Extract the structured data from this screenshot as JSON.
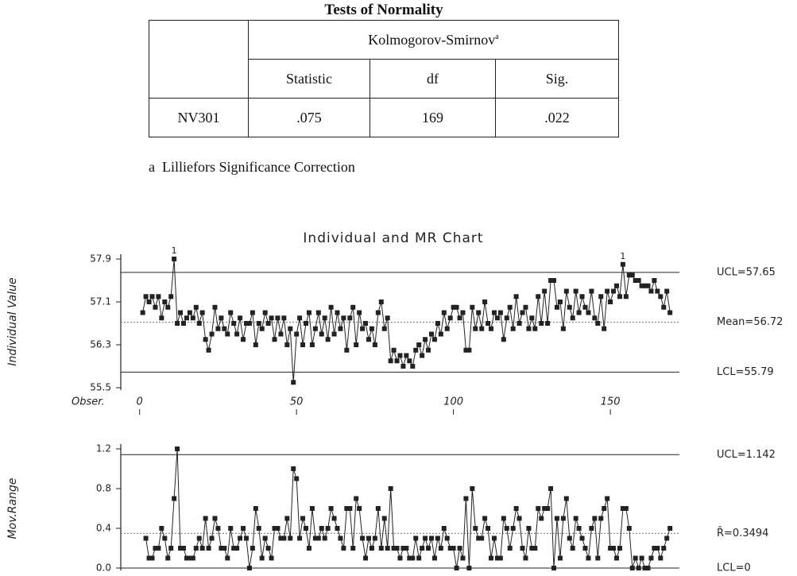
{
  "header": {
    "title": "Tests of Normality"
  },
  "table": {
    "group_header": "Kolmogorov-Smirnov",
    "group_note": "a",
    "columns": [
      "Statistic",
      "df",
      "Sig."
    ],
    "rows": [
      [
        "NV301",
        ".075",
        "169",
        ".022"
      ]
    ]
  },
  "footnote": {
    "mark": "a",
    "text": "Lilliefors Significance Correction"
  },
  "chart_data": [
    {
      "type": "line",
      "title": "Individual and MR Chart",
      "ylabel": "Individual Value",
      "xlabel": "Obser.",
      "color": "#222222",
      "xlim": [
        -6,
        172
      ],
      "xticks": [
        0,
        50,
        100,
        150
      ],
      "ylim": [
        55.5,
        57.9
      ],
      "yticks": [
        55.5,
        56.3,
        57.1,
        57.9
      ],
      "reference_lines": [
        {
          "value": 57.65,
          "label": "UCL=57.65"
        },
        {
          "value": 56.72,
          "label": "Mean=56.72"
        },
        {
          "value": 55.79,
          "label": "LCL=55.79"
        }
      ],
      "flag_label": "1",
      "values": [
        56.9,
        57.2,
        57.1,
        57.2,
        57.0,
        57.2,
        56.8,
        57.1,
        57.0,
        57.2,
        57.9,
        56.7,
        56.9,
        56.7,
        56.8,
        56.9,
        56.8,
        57.0,
        56.7,
        56.9,
        56.4,
        56.2,
        56.5,
        57.0,
        56.6,
        56.8,
        56.6,
        56.5,
        56.9,
        56.7,
        56.5,
        56.8,
        56.4,
        56.7,
        56.7,
        56.9,
        56.3,
        56.7,
        56.6,
        56.9,
        56.7,
        56.8,
        56.4,
        56.8,
        56.5,
        56.8,
        56.3,
        56.6,
        55.6,
        56.5,
        56.8,
        56.3,
        56.7,
        56.9,
        56.3,
        56.6,
        56.9,
        56.5,
        56.8,
        56.4,
        57.0,
        56.5,
        56.9,
        56.6,
        56.8,
        56.2,
        56.8,
        57.0,
        56.3,
        56.9,
        56.6,
        56.7,
        56.4,
        56.6,
        56.3,
        56.9,
        57.1,
        56.6,
        56.8,
        56.0,
        56.2,
        56.0,
        56.1,
        55.9,
        56.1,
        56.0,
        55.9,
        56.2,
        56.3,
        56.1,
        56.4,
        56.2,
        56.5,
        56.4,
        56.7,
        56.5,
        56.9,
        56.6,
        56.8,
        57.0,
        57.0,
        56.8,
        56.9,
        56.2,
        56.2,
        57.0,
        56.6,
        56.9,
        56.6,
        57.1,
        56.7,
        56.6,
        56.9,
        56.8,
        56.9,
        56.4,
        56.8,
        57.0,
        56.6,
        57.2,
        56.7,
        56.9,
        57.0,
        56.6,
        56.8,
        56.6,
        57.2,
        56.7,
        57.3,
        56.7,
        57.5,
        57.5,
        57.0,
        57.1,
        56.6,
        57.3,
        57.0,
        56.8,
        57.3,
        56.9,
        57.2,
        57.0,
        56.9,
        57.3,
        56.8,
        56.7,
        57.2,
        56.6,
        57.3,
        57.1,
        57.3,
        57.4,
        57.2,
        57.8,
        57.2,
        57.6,
        57.6,
        57.5,
        57.5,
        57.4,
        57.4,
        57.4,
        57.3,
        57.5,
        57.3,
        57.2,
        57.0,
        57.3,
        56.9
      ]
    },
    {
      "type": "line",
      "ylabel": "Mov.Range",
      "color": "#222222",
      "xlim": [
        -6,
        172
      ],
      "ylim": [
        0,
        1.2
      ],
      "yticks": [
        {
          "value": 0,
          "label": "0.0"
        },
        0.4,
        0.8,
        1.2
      ],
      "reference_lines": [
        {
          "value": 1.142,
          "label": "UCL=1.142"
        },
        {
          "value": 0.3494,
          "label": "R̄=0.3494"
        },
        {
          "value": 0,
          "label": "LCL=0"
        }
      ],
      "values": [
        null,
        0.3,
        0.1,
        0.1,
        0.2,
        0.2,
        0.4,
        0.3,
        0.1,
        0.2,
        0.7,
        1.2,
        0.2,
        0.2,
        0.1,
        0.1,
        0.1,
        0.2,
        0.3,
        0.2,
        0.5,
        0.2,
        0.3,
        0.5,
        0.4,
        0.2,
        0.2,
        0.1,
        0.4,
        0.2,
        0.2,
        0.3,
        0.4,
        0.3,
        0.0,
        0.2,
        0.6,
        0.4,
        0.1,
        0.3,
        0.2,
        0.1,
        0.4,
        0.4,
        0.3,
        0.3,
        0.5,
        0.3,
        1.0,
        0.9,
        0.3,
        0.5,
        0.4,
        0.2,
        0.6,
        0.3,
        0.3,
        0.4,
        0.3,
        0.4,
        0.6,
        0.5,
        0.4,
        0.3,
        0.2,
        0.6,
        0.6,
        0.2,
        0.7,
        0.6,
        0.3,
        0.1,
        0.3,
        0.2,
        0.3,
        0.6,
        0.2,
        0.5,
        0.2,
        0.8,
        0.2,
        0.2,
        0.1,
        0.2,
        0.2,
        0.1,
        0.1,
        0.3,
        0.1,
        0.2,
        0.3,
        0.2,
        0.3,
        0.1,
        0.3,
        0.2,
        0.4,
        0.3,
        0.2,
        0.2,
        0.0,
        0.2,
        0.1,
        0.7,
        0.0,
        0.8,
        0.4,
        0.3,
        0.3,
        0.5,
        0.4,
        0.1,
        0.3,
        0.1,
        0.1,
        0.5,
        0.4,
        0.2,
        0.4,
        0.6,
        0.5,
        0.2,
        0.1,
        0.4,
        0.2,
        0.2,
        0.6,
        0.5,
        0.6,
        0.6,
        0.8,
        0.0,
        0.5,
        0.1,
        0.5,
        0.7,
        0.3,
        0.2,
        0.5,
        0.4,
        0.3,
        0.2,
        0.1,
        0.4,
        0.5,
        0.1,
        0.5,
        0.6,
        0.7,
        0.2,
        0.2,
        0.1,
        0.2,
        0.6,
        0.6,
        0.4,
        0.0,
        0.1,
        0.0,
        0.1,
        0.0,
        0.0,
        0.1,
        0.2,
        0.2,
        0.1,
        0.2,
        0.3,
        0.4
      ]
    }
  ]
}
